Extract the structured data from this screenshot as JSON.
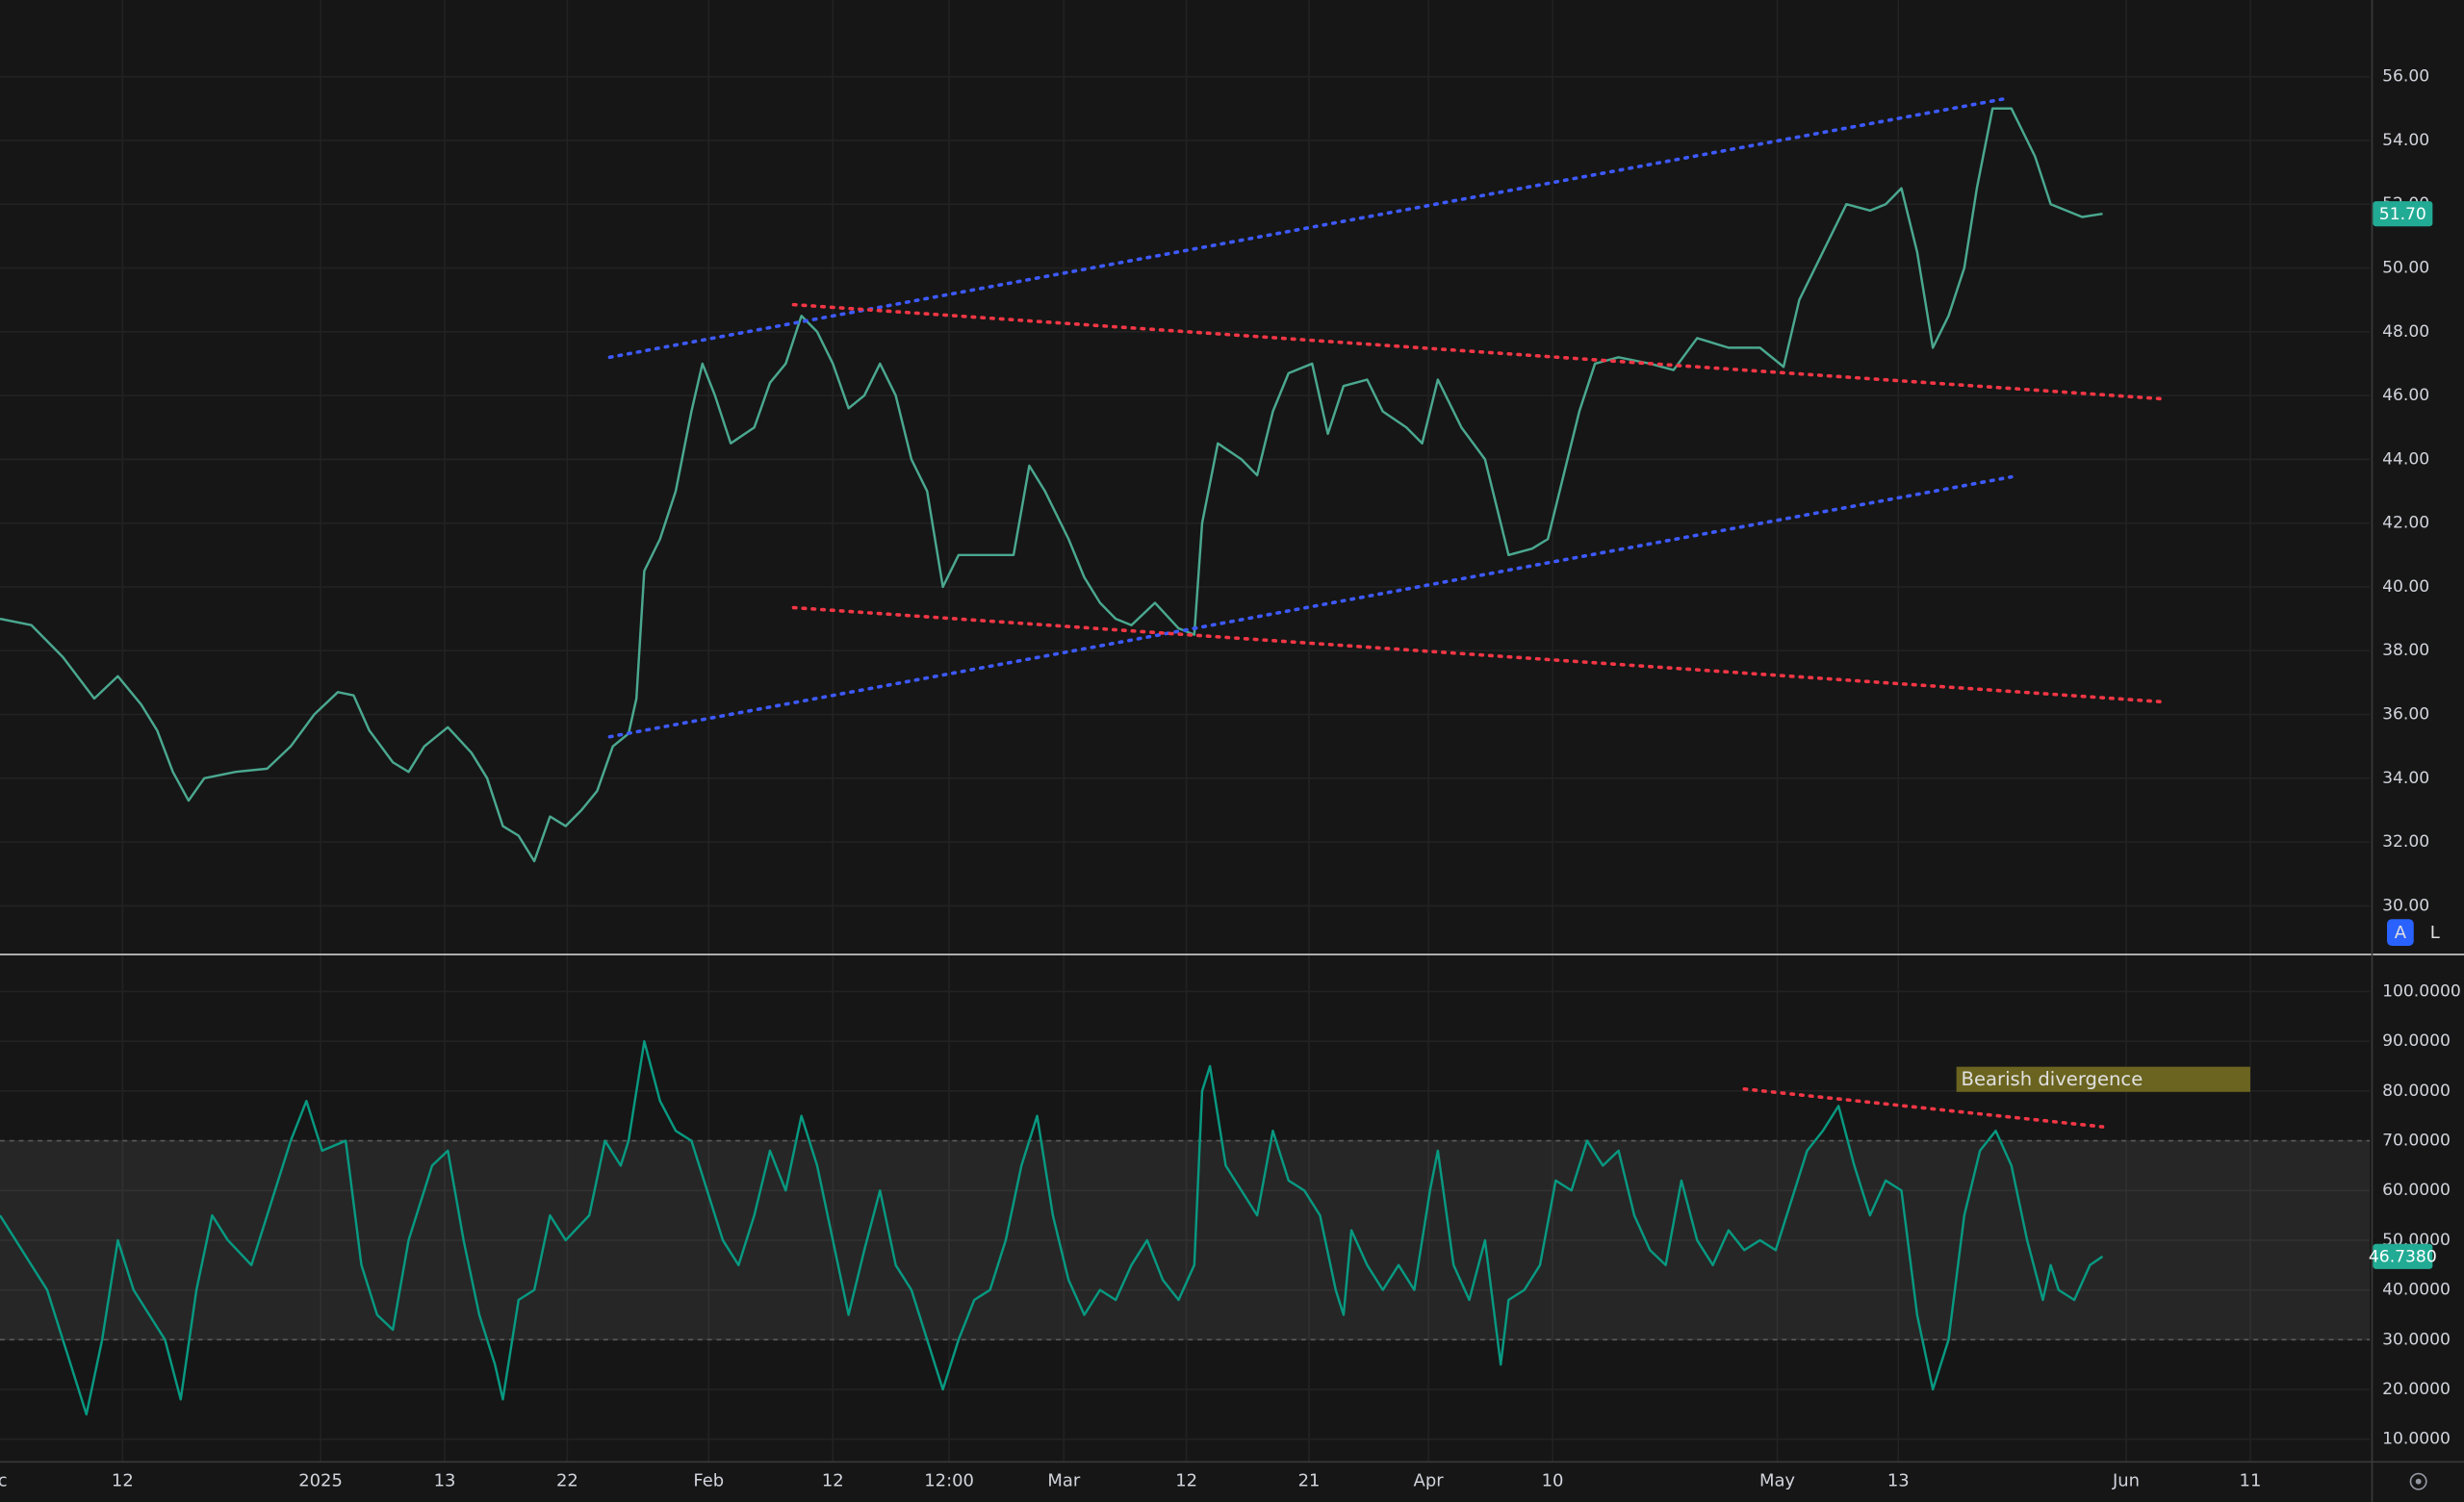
{
  "chart_data": [
    {
      "type": "line",
      "x": [
        0,
        2,
        4,
        6,
        7.5,
        9,
        10,
        11,
        12,
        13,
        15,
        17,
        18.5,
        20,
        21.5,
        22.5,
        23.5,
        25,
        26,
        27,
        28.5,
        30,
        31,
        32,
        33,
        34,
        35,
        36,
        37,
        38,
        39,
        40,
        40.5,
        41,
        42,
        43,
        44,
        44.7,
        45.5,
        46.5,
        48,
        49,
        50,
        51,
        52,
        53,
        54,
        55,
        56,
        57,
        58,
        59,
        60,
        61,
        63,
        64.5,
        65.5,
        66.5,
        68,
        69,
        70,
        71,
        72,
        73.5,
        75,
        76,
        76.5,
        77.5,
        79,
        80,
        81,
        82,
        83.5,
        84.5,
        85.5,
        87,
        88,
        89.5,
        90.5,
        91.5,
        93,
        94.5,
        95.5,
        96,
        97.5,
        98.5,
        99.5,
        100.5,
        101.5,
        103,
        105,
        106.5,
        108,
        110,
        112,
        113.5,
        114.5,
        116,
        117.5,
        119,
        120,
        121,
        122,
        123,
        124,
        125,
        125.8,
        126.8,
        128,
        129.5,
        130.5,
        131.5,
        132.5,
        133.8
      ],
      "series": [
        {
          "color": "#4aa88f",
          "values": [
            39.0,
            38.8,
            37.8,
            36.5,
            37.2,
            36.3,
            35.5,
            34.2,
            33.3,
            34.0,
            34.2,
            34.3,
            35.0,
            36.0,
            36.7,
            36.6,
            35.5,
            34.5,
            34.2,
            35.0,
            35.6,
            34.8,
            34.0,
            32.5,
            32.2,
            31.4,
            32.8,
            32.5,
            33.0,
            33.6,
            35.0,
            35.4,
            36.5,
            40.5,
            41.5,
            43.0,
            45.5,
            47.0,
            46.0,
            44.5,
            45.0,
            46.4,
            47.0,
            48.5,
            48.0,
            47.0,
            45.6,
            46.0,
            47.0,
            46.0,
            44.0,
            43.0,
            40.0,
            41.0,
            41.0,
            41.0,
            43.8,
            43.0,
            41.5,
            40.3,
            39.5,
            39.0,
            38.8,
            39.5,
            38.7,
            38.5,
            42.0,
            44.5,
            44.0,
            43.5,
            45.5,
            46.7,
            47.0,
            44.8,
            46.3,
            46.5,
            45.5,
            45.0,
            44.5,
            46.5,
            45.0,
            44.0,
            42.0,
            41.0,
            41.2,
            41.5,
            43.5,
            45.5,
            47.0,
            47.2,
            47.0,
            46.8,
            47.8,
            47.5,
            47.5,
            46.9,
            49.0,
            50.5,
            52.0,
            51.8,
            52.0,
            52.5,
            50.5,
            47.5,
            48.5,
            50.0,
            52.5,
            55.0,
            55.0,
            53.5,
            52.0,
            51.8,
            51.6,
            51.7
          ]
        }
      ],
      "current_label": "51.70",
      "trend_lines": [
        {
          "color": "#3d5afe",
          "x": [
            38.8,
            127.5
          ],
          "values": [
            47.2,
            55.3
          ]
        },
        {
          "color": "#3d5afe",
          "x": [
            38.8,
            128
          ],
          "values": [
            35.3,
            43.45
          ]
        },
        {
          "color": "#f23645",
          "x": [
            50.5,
            137.5
          ],
          "values": [
            48.85,
            45.9
          ]
        },
        {
          "color": "#f23645",
          "x": [
            50.5,
            137.5
          ],
          "values": [
            39.35,
            36.4
          ]
        }
      ],
      "xlim": [
        0,
        150.8
      ],
      "ylim": [
        28.5,
        58.4
      ],
      "yticks": [
        {
          "value": 30,
          "label": "30.00"
        },
        {
          "value": 32,
          "label": "32.00"
        },
        {
          "value": 34,
          "label": "34.00"
        },
        {
          "value": 36,
          "label": "36.00"
        },
        {
          "value": 38,
          "label": "38.00"
        },
        {
          "value": 40,
          "label": "40.00"
        },
        {
          "value": 42,
          "label": "42.00"
        },
        {
          "value": 44,
          "label": "44.00"
        },
        {
          "value": 46,
          "label": "46.00"
        },
        {
          "value": 48,
          "label": "48.00"
        },
        {
          "value": 50,
          "label": "50.00"
        },
        {
          "value": 52,
          "label": "52.00"
        },
        {
          "value": 54,
          "label": "54.00"
        },
        {
          "value": 56,
          "label": "56.00"
        }
      ],
      "grid": true
    },
    {
      "type": "line",
      "x": [
        0,
        1,
        2,
        3,
        4,
        5,
        5.5,
        6.5,
        7.5,
        8.5,
        9.5,
        10.5,
        11.5,
        12.5,
        13.5,
        14.5,
        16,
        17.5,
        18.5,
        19.5,
        20.5,
        22,
        23,
        24,
        25,
        26,
        27.5,
        28.5,
        29.5,
        30.5,
        31.5,
        32,
        33,
        34,
        35,
        36,
        37.5,
        38.5,
        39.5,
        40,
        41,
        42,
        43,
        44,
        45,
        46,
        47,
        48,
        49,
        50,
        51,
        52,
        53,
        54,
        55,
        56,
        57,
        58,
        59,
        60,
        61,
        62,
        63,
        64,
        65,
        66,
        67,
        68,
        69,
        70,
        71,
        72,
        73,
        74,
        75,
        76,
        76.5,
        77,
        78,
        79,
        80,
        81,
        82,
        83,
        84,
        85,
        85.5,
        86,
        87,
        88,
        89,
        90,
        91,
        91.5,
        92.5,
        93.5,
        94.5,
        95.5,
        96,
        97,
        98,
        99,
        100,
        101,
        102,
        103,
        104,
        105,
        106,
        107,
        108,
        109,
        110,
        111,
        112,
        113,
        114,
        115,
        116,
        117,
        118,
        119,
        120,
        121,
        122,
        123,
        124,
        125,
        126,
        127,
        128,
        129,
        130,
        130.5,
        131,
        132,
        133,
        133.8
      ],
      "series": [
        {
          "color": "#089981",
          "values": [
            55,
            50,
            45,
            40,
            30,
            20,
            15,
            30,
            50,
            40,
            35,
            30,
            18,
            40,
            55,
            50,
            45,
            60,
            70,
            78,
            68,
            70,
            45,
            35,
            32,
            50,
            65,
            68,
            50,
            35,
            25,
            18,
            38,
            40,
            55,
            50,
            55,
            70,
            65,
            70,
            90,
            78,
            72,
            70,
            60,
            50,
            45,
            55,
            68,
            60,
            75,
            65,
            50,
            35,
            48,
            60,
            45,
            40,
            30,
            20,
            30,
            38,
            40,
            50,
            65,
            75,
            55,
            42,
            35,
            40,
            38,
            45,
            50,
            42,
            38,
            45,
            80,
            85,
            65,
            60,
            55,
            72,
            62,
            60,
            55,
            40,
            35,
            52,
            45,
            40,
            45,
            40,
            60,
            68,
            45,
            38,
            50,
            25,
            38,
            40,
            45,
            62,
            60,
            70,
            65,
            68,
            55,
            48,
            45,
            62,
            50,
            45,
            52,
            48,
            50,
            48,
            58,
            68,
            72,
            77,
            65,
            55,
            62,
            60,
            35,
            20,
            30,
            55,
            68,
            72,
            65,
            50,
            38,
            45,
            40,
            38,
            45,
            46.738
          ]
        }
      ],
      "current_label": "46.7380",
      "bands": [
        30,
        70
      ],
      "trend_lines": [
        {
          "color": "#f23645",
          "x": [
            111,
            133.8
          ],
          "values": [
            80.4,
            72.8
          ]
        }
      ],
      "annotation": "Bearish divergence",
      "xlim": [
        0,
        150.8
      ],
      "ylim": [
        5.6,
        107.3
      ],
      "yticks": [
        {
          "value": 10,
          "label": "10.0000"
        },
        {
          "value": 20,
          "label": "20.0000"
        },
        {
          "value": 30,
          "label": "30.0000"
        },
        {
          "value": 40,
          "label": "40.0000"
        },
        {
          "value": 50,
          "label": "50.0000"
        },
        {
          "value": 60,
          "label": "60.0000"
        },
        {
          "value": 70,
          "label": "70.0000"
        },
        {
          "value": 80,
          "label": "80.0000"
        },
        {
          "value": 90,
          "label": "90.0000"
        },
        {
          "value": 100,
          "label": "100.0000"
        }
      ],
      "xticks": [
        {
          "value": -0.6,
          "label": "Dec"
        },
        {
          "value": 7.8,
          "label": "12"
        },
        {
          "value": 20.4,
          "label": "2025"
        },
        {
          "value": 28.3,
          "label": "13"
        },
        {
          "value": 36.1,
          "label": "22"
        },
        {
          "value": 45.1,
          "label": "Feb"
        },
        {
          "value": 53.0,
          "label": "12"
        },
        {
          "value": 60.4,
          "label": "12:00"
        },
        {
          "value": 67.7,
          "label": "Mar"
        },
        {
          "value": 75.5,
          "label": "12"
        },
        {
          "value": 83.3,
          "label": "21"
        },
        {
          "value": 90.9,
          "label": "Apr"
        },
        {
          "value": 98.8,
          "label": "10"
        },
        {
          "value": 113.1,
          "label": "May"
        },
        {
          "value": 120.8,
          "label": "13"
        },
        {
          "value": 135.3,
          "label": "Jun"
        },
        {
          "value": 143.2,
          "label": "11"
        }
      ],
      "grid": true
    }
  ],
  "ui": {
    "scale_buttons": [
      "A",
      "L"
    ]
  }
}
